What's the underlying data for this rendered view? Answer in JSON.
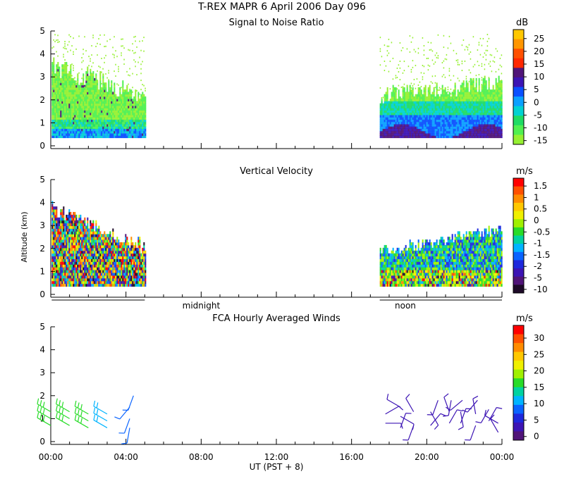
{
  "header": {
    "title": "T-REX  MAPR  6 April 2006 Day 096"
  },
  "chart_data": [
    {
      "type": "heatmap",
      "title": "Signal to Noise Ratio",
      "ylabel": "",
      "ylim": [
        0,
        5
      ],
      "yticks": [
        "0",
        "1",
        "2",
        "3",
        "4",
        "5"
      ],
      "xlim_hours": [
        0,
        24
      ],
      "colorbar": {
        "unit": "dB",
        "labels": [
          "25",
          "20",
          "15",
          "10",
          "5",
          "0",
          "-5",
          "-10",
          "-15"
        ],
        "colors": [
          "#ffc800",
          "#ff9600",
          "#ff5000",
          "#ff2800",
          "#501478",
          "#3c14b4",
          "#0a50ff",
          "#0aa0ff",
          "#00d2d2",
          "#1edc64",
          "#50f050",
          "#96f032"
        ]
      },
      "data_segments_hours": [
        [
          0.05,
          5.0
        ],
        [
          17.5,
          24.0
        ]
      ],
      "min_altitude_km": 0.35
    },
    {
      "type": "heatmap",
      "title": "Vertical Velocity",
      "ylabel": "Altitude (km)",
      "ylim": [
        0,
        5
      ],
      "yticks": [
        "0",
        "1",
        "2",
        "3",
        "4",
        "5"
      ],
      "xlim_hours": [
        0,
        24
      ],
      "colorbar": {
        "unit": "m/s",
        "labels": [
          "1.5",
          "1",
          "0.5",
          "0",
          "-0.5",
          "-1",
          "-1.5",
          "-2",
          "-5",
          "-10"
        ],
        "colors": [
          "#ff0000",
          "#ff5000",
          "#ff8c00",
          "#ffc800",
          "#f0f000",
          "#a0f000",
          "#28dc28",
          "#00d2a0",
          "#00b4ff",
          "#0a64ff",
          "#1e28dc",
          "#3c14b4",
          "#501478",
          "#1e0a28"
        ]
      },
      "data_segments_hours": [
        [
          0.05,
          5.0
        ],
        [
          17.5,
          24.0
        ]
      ],
      "night_day_labels": [
        "midnight",
        "noon"
      ],
      "min_altitude_km": 0.35
    },
    {
      "type": "scatter",
      "title": "FCA Hourly Averaged Winds",
      "ylabel": "",
      "ylim": [
        0,
        5
      ],
      "yticks": [
        "0",
        "1",
        "2",
        "3",
        "4",
        "5"
      ],
      "xlim_hours": [
        0,
        24
      ],
      "xticks": [
        "00:00",
        "04:00",
        "08:00",
        "12:00",
        "16:00",
        "20:00",
        "00:00"
      ],
      "xlabel": "UT  (PST + 8)",
      "colorbar": {
        "unit": "m/s",
        "labels": [
          "30",
          "25",
          "20",
          "15",
          "10",
          "5",
          "0"
        ],
        "colors": [
          "#ff0000",
          "#ff5000",
          "#ff8c00",
          "#ffc800",
          "#f0f000",
          "#a0f000",
          "#28dc28",
          "#00d2a0",
          "#00b4ff",
          "#0a64ff",
          "#1e28dc",
          "#3c14b4",
          "#501478"
        ]
      },
      "barb_colors": [
        "#28dc28",
        "#00d2a0",
        "#00b4ff",
        "#0a64ff",
        "#3c14b4"
      ],
      "barbs": [
        {
          "hour": 0.0,
          "alt": 0.7,
          "dir": 300,
          "speed": 15
        },
        {
          "hour": 0.0,
          "alt": 1.0,
          "dir": 300,
          "speed": 15
        },
        {
          "hour": 0.0,
          "alt": 1.3,
          "dir": 300,
          "speed": 15
        },
        {
          "hour": 1.0,
          "alt": 0.7,
          "dir": 300,
          "speed": 15
        },
        {
          "hour": 1.0,
          "alt": 1.0,
          "dir": 300,
          "speed": 15
        },
        {
          "hour": 1.0,
          "alt": 1.3,
          "dir": 300,
          "speed": 15
        },
        {
          "hour": 2.0,
          "alt": 0.6,
          "dir": 300,
          "speed": 15
        },
        {
          "hour": 2.0,
          "alt": 0.9,
          "dir": 300,
          "speed": 15
        },
        {
          "hour": 2.0,
          "alt": 1.2,
          "dir": 300,
          "speed": 15
        },
        {
          "hour": 3.0,
          "alt": 0.6,
          "dir": 300,
          "speed": 10
        },
        {
          "hour": 3.0,
          "alt": 0.9,
          "dir": 300,
          "speed": 10
        },
        {
          "hour": 3.0,
          "alt": 1.2,
          "dir": 300,
          "speed": 10
        },
        {
          "hour": 4.2,
          "alt": 0.6,
          "dir": 190,
          "speed": 5
        },
        {
          "hour": 4.2,
          "alt": 1.0,
          "dir": 200,
          "speed": 5
        },
        {
          "hour": 4.2,
          "alt": 1.5,
          "dir": 220,
          "speed": 5
        },
        {
          "hour": 4.4,
          "alt": 2.0,
          "dir": 200,
          "speed": 5
        },
        {
          "hour": 17.8,
          "alt": 0.8,
          "dir": 90,
          "speed": 3
        },
        {
          "hour": 17.8,
          "alt": 1.2,
          "dir": 60,
          "speed": 3
        },
        {
          "hour": 18.6,
          "alt": 0.6,
          "dir": 20,
          "speed": 3
        },
        {
          "hour": 18.6,
          "alt": 1.1,
          "dir": 120,
          "speed": 3
        },
        {
          "hour": 18.6,
          "alt": 1.5,
          "dir": 300,
          "speed": 3
        },
        {
          "hour": 19.3,
          "alt": 0.7,
          "dir": 200,
          "speed": 3
        },
        {
          "hour": 19.3,
          "alt": 1.3,
          "dir": 330,
          "speed": 3
        },
        {
          "hour": 20.2,
          "alt": 0.7,
          "dir": 40,
          "speed": 3
        },
        {
          "hour": 20.2,
          "alt": 1.3,
          "dir": 150,
          "speed": 3
        },
        {
          "hour": 20.6,
          "alt": 1.8,
          "dir": 200,
          "speed": 3
        },
        {
          "hour": 21.2,
          "alt": 0.8,
          "dir": 30,
          "speed": 3
        },
        {
          "hour": 21.2,
          "alt": 1.3,
          "dir": 340,
          "speed": 3
        },
        {
          "hour": 21.3,
          "alt": 1.8,
          "dir": 190,
          "speed": 3
        },
        {
          "hour": 21.8,
          "alt": 0.8,
          "dir": 20,
          "speed": 3
        },
        {
          "hour": 21.8,
          "alt": 1.3,
          "dir": 170,
          "speed": 3
        },
        {
          "hour": 21.9,
          "alt": 1.8,
          "dir": 230,
          "speed": 3
        },
        {
          "hour": 22.6,
          "alt": 0.7,
          "dir": 200,
          "speed": 3
        },
        {
          "hour": 22.6,
          "alt": 1.2,
          "dir": 350,
          "speed": 3
        },
        {
          "hour": 22.7,
          "alt": 1.8,
          "dir": 220,
          "speed": 3
        },
        {
          "hour": 23.3,
          "alt": 0.9,
          "dir": 30,
          "speed": 3
        },
        {
          "hour": 23.3,
          "alt": 1.4,
          "dir": 210,
          "speed": 3
        },
        {
          "hour": 23.8,
          "alt": 0.4,
          "dir": 330,
          "speed": 3
        },
        {
          "hour": 23.8,
          "alt": 0.8,
          "dir": 300,
          "speed": 3
        }
      ]
    }
  ]
}
